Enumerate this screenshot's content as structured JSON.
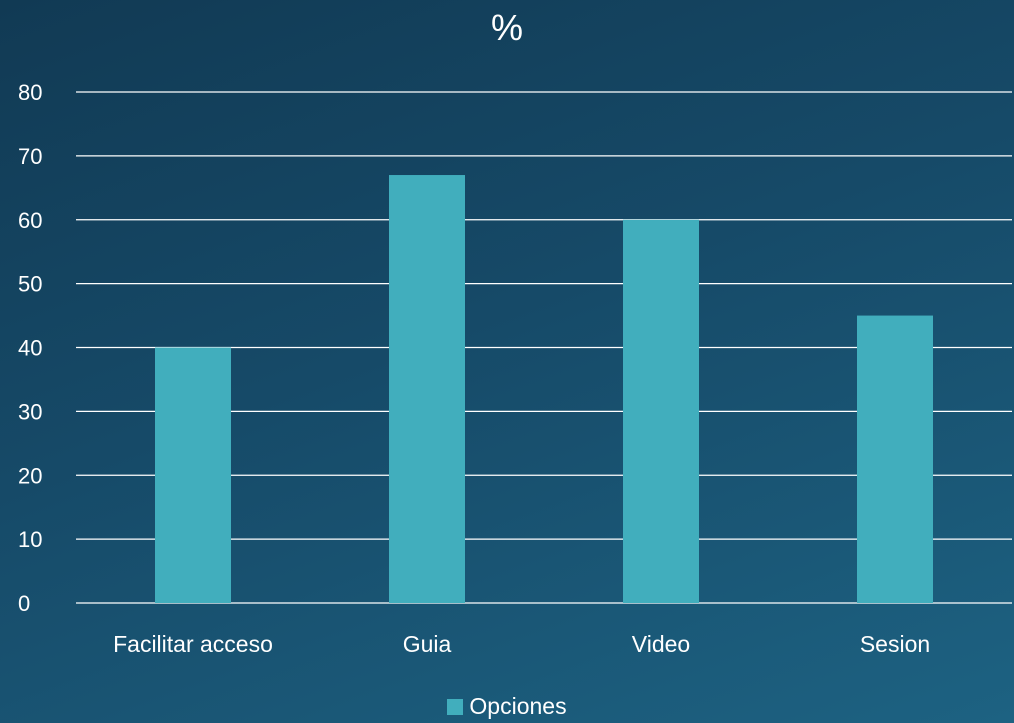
{
  "chart_data": {
    "type": "bar",
    "title": "%",
    "categories": [
      "Facilitar acceso",
      "Guia",
      "Video",
      "Sesion"
    ],
    "series": [
      {
        "name": "Opciones",
        "values": [
          40,
          67,
          60,
          45
        ]
      }
    ],
    "ylim": [
      0,
      80
    ],
    "yticks": [
      "0",
      "10",
      "20",
      "30",
      "40",
      "50",
      "60",
      "70",
      "80"
    ],
    "grid": true,
    "legend_position": "bottom",
    "colors": {
      "bar": "#41aebd",
      "grid": "#ffffff",
      "text": "#ffffff"
    }
  }
}
